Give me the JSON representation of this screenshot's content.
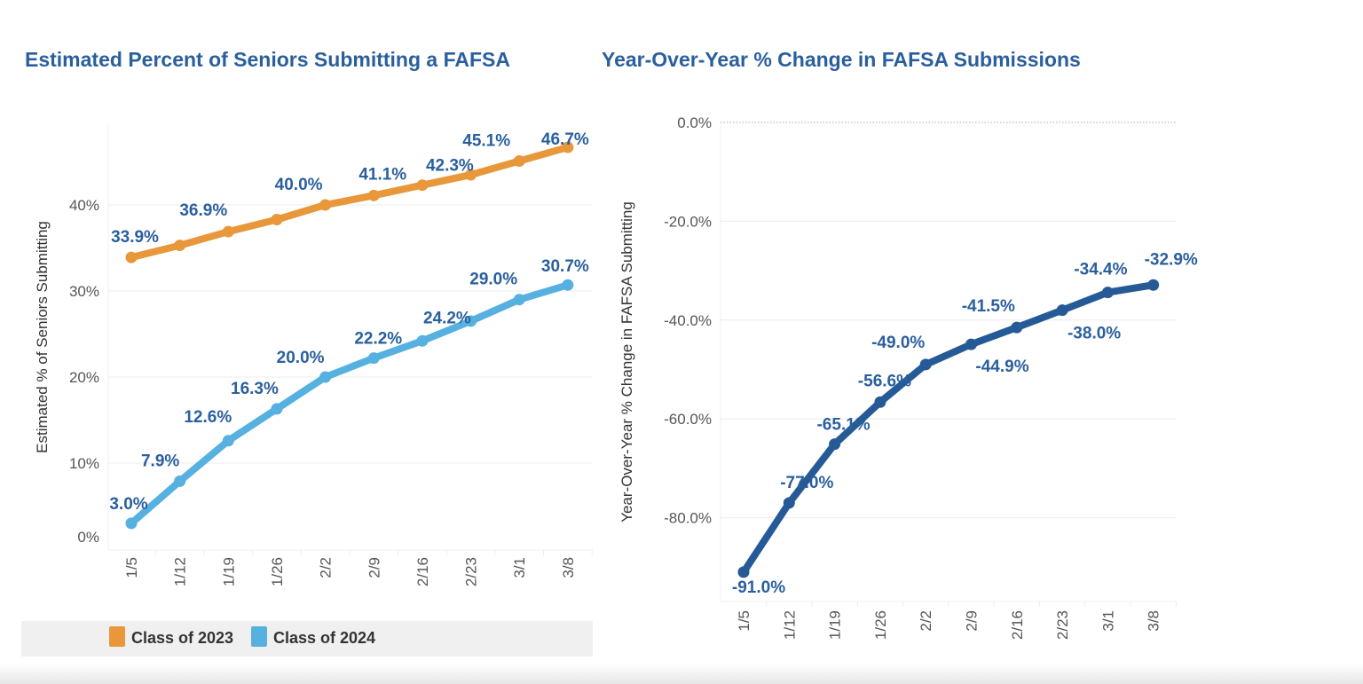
{
  "chart_data": [
    {
      "type": "line",
      "title": "Estimated Percent of Seniors Submitting a FAFSA",
      "xlabel": "",
      "ylabel": "Estimated % of Seniors Submitting",
      "categories": [
        "1/5",
        "1/12",
        "1/19",
        "1/26",
        "2/2",
        "2/9",
        "2/16",
        "2/23",
        "3/1",
        "3/8"
      ],
      "yticks": [
        "0%",
        "10%",
        "20%",
        "30%",
        "40%"
      ],
      "ytick_values": [
        0,
        10,
        20,
        30,
        40
      ],
      "ylim": [
        0,
        49.5
      ],
      "grid": true,
      "legend": "bottom",
      "series": [
        {
          "name": "Class of 2023",
          "color": "#e8973a",
          "values": [
            33.9,
            35.3,
            36.9,
            38.3,
            40.0,
            41.1,
            42.3,
            43.5,
            45.1,
            46.7
          ],
          "labels": [
            "33.9%",
            null,
            "36.9%",
            null,
            "40.0%",
            "41.1%",
            "42.3%",
            null,
            "45.1%",
            "46.7%"
          ]
        },
        {
          "name": "Class of 2024",
          "color": "#56b0e0",
          "values": [
            3.0,
            7.9,
            12.6,
            16.3,
            20.0,
            22.2,
            24.2,
            26.5,
            29.0,
            30.7
          ],
          "labels": [
            "3.0%",
            "7.9%",
            "12.6%",
            "16.3%",
            "20.0%",
            "22.2%",
            "24.2%",
            null,
            "29.0%",
            "30.7%"
          ]
        }
      ]
    },
    {
      "type": "line",
      "title": "Year-Over-Year % Change in FAFSA Submissions",
      "xlabel": "",
      "ylabel": "Year-Over-Year % Change in FAFSA Submitting",
      "categories": [
        "1/5",
        "1/12",
        "1/19",
        "1/26",
        "2/2",
        "2/9",
        "2/16",
        "2/23",
        "3/1",
        "3/8"
      ],
      "yticks": [
        "0.0%",
        "-20.0%",
        "-40.0%",
        "-60.0%",
        "-80.0%"
      ],
      "ytick_values": [
        0,
        -20,
        -40,
        -60,
        -80
      ],
      "ylim": [
        -96.5,
        0
      ],
      "grid": true,
      "series": [
        {
          "color": "#255a96",
          "values": [
            -91.0,
            -77.0,
            -65.1,
            -56.6,
            -49.0,
            -44.9,
            -41.5,
            -38.0,
            -34.4,
            -32.9
          ],
          "labels": [
            "-91.0%",
            "-77.0%",
            "-65.1%",
            "-56.6%",
            "-49.0%",
            "-44.9%",
            "-41.5%",
            "-38.0%",
            "-34.4%",
            "-32.9%"
          ]
        }
      ]
    }
  ]
}
